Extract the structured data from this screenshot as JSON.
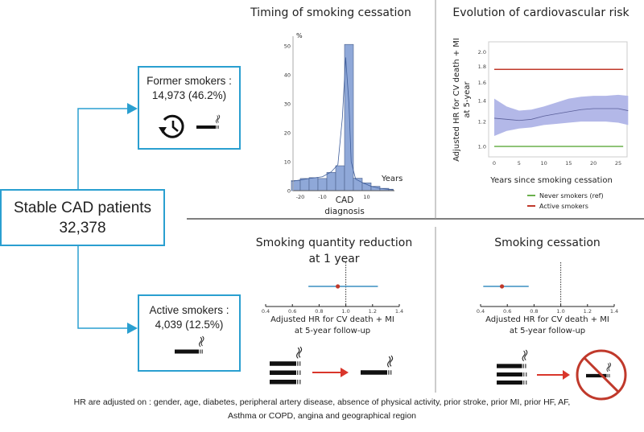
{
  "patients": {
    "title": "Stable CAD patients",
    "count": "32,378"
  },
  "former": {
    "label": "Former smokers :",
    "count": "14,973 (46.2%)",
    "icons": [
      "clock-history-icon",
      "cigarette-icon"
    ]
  },
  "active": {
    "label": "Active smokers :",
    "count": "4,039 (12.5%)",
    "icons": [
      "cigarette-icon"
    ]
  },
  "panels": {
    "timing": {
      "title": "Timing of smoking cessation"
    },
    "evolution": {
      "title": "Evolution of cardiovascular risk"
    },
    "reduction": {
      "title_line1": "Smoking quantity reduction",
      "title_line2": "at 1 year",
      "icons": [
        "three-cigarettes-icon",
        "arrow-right-icon",
        "cigarette-icon"
      ]
    },
    "cessation": {
      "title": "Smoking cessation",
      "icons": [
        "three-cigarettes-icon",
        "arrow-right-icon",
        "no-smoking-icon"
      ]
    }
  },
  "footnote": {
    "line1": "HR are adjusted on : gender, age, diabetes, peripheral artery disease, absence of physical activity, prior stroke, prior MI, prior HF, AF,",
    "line2": "Asthma or COPD, angina and geographical region"
  },
  "colors": {
    "accent_blue": "#2a9fd0",
    "bar_fill": "#8fa8d8",
    "band_fill": "#b3b8e8",
    "active_red": "#c0392b",
    "never_green": "#6ab04c",
    "ci_blue": "#3a8fc0",
    "arrow_red": "#d9362b"
  },
  "chart_data": [
    {
      "type": "bar",
      "title": "Timing of smoking cessation",
      "ylabel": "%",
      "xlabel": "Years",
      "x_marker_label": [
        "CAD",
        "diagnosis"
      ],
      "bin_edges": [
        -24,
        -20,
        -16,
        -12,
        -8,
        -4,
        0,
        4,
        8,
        12,
        16,
        20,
        22
      ],
      "values": [
        3.5,
        4.2,
        4.5,
        4.2,
        6.3,
        8.6,
        50.5,
        4.3,
        2.7,
        1.5,
        0.8,
        0.5
      ],
      "density_curve": [
        [
          -24,
          3.2
        ],
        [
          -16,
          4.2
        ],
        [
          -10,
          4.8
        ],
        [
          -6,
          6.5
        ],
        [
          -3,
          9
        ],
        [
          -1,
          25
        ],
        [
          0.5,
          46
        ],
        [
          2,
          30
        ],
        [
          3,
          10
        ],
        [
          5,
          4
        ],
        [
          8,
          2.8
        ],
        [
          12,
          1.5
        ],
        [
          16,
          0.8
        ],
        [
          22,
          0.3
        ]
      ],
      "xticks": [
        -20,
        -10,
        10
      ],
      "yticks": [
        0,
        10,
        20,
        30,
        40,
        50
      ],
      "ylim": [
        0,
        52
      ],
      "xlim": [
        -24,
        22
      ]
    },
    {
      "type": "line",
      "title": "Evolution of cardiovascular risk",
      "xlabel": "Years since smoking cessation",
      "ylabel": [
        "Adjusted HR for CV death + MI",
        "at 5-year"
      ],
      "yscale": "log",
      "xticks": [
        0,
        5,
        10,
        15,
        20,
        25
      ],
      "yticks": [
        1.0,
        1.2,
        1.4,
        1.6,
        1.8,
        2.0
      ],
      "ytick_labels": [
        "1.0",
        "1.2",
        "1.4",
        "1.6",
        "1.8",
        "2.0"
      ],
      "xlim": [
        -1,
        27
      ],
      "ylim": [
        0.9,
        2.1
      ],
      "legend_position": "bottom",
      "series": [
        {
          "name": "Never smokers (ref)",
          "color": "#6ab04c",
          "x": [
            0,
            26
          ],
          "y": [
            1.0,
            1.0
          ]
        },
        {
          "name": "Active smokers",
          "color": "#c0392b",
          "x": [
            0,
            26
          ],
          "y": [
            1.76,
            1.76
          ]
        }
      ],
      "former_smokers_estimate": {
        "x": [
          0,
          2.5,
          5,
          7.5,
          10,
          12.5,
          15,
          17.5,
          20,
          22.5,
          25,
          27
        ],
        "y": [
          1.23,
          1.22,
          1.21,
          1.22,
          1.25,
          1.27,
          1.29,
          1.31,
          1.32,
          1.32,
          1.32,
          1.3
        ],
        "upper": [
          1.42,
          1.34,
          1.3,
          1.31,
          1.34,
          1.38,
          1.42,
          1.44,
          1.45,
          1.45,
          1.46,
          1.45
        ],
        "lower": [
          1.08,
          1.12,
          1.14,
          1.15,
          1.17,
          1.18,
          1.19,
          1.2,
          1.2,
          1.2,
          1.19,
          1.17
        ]
      }
    },
    {
      "type": "scatter",
      "subtype": "forest",
      "title": "Smoking quantity reduction at 1 year",
      "xlabel": [
        "Adjusted HR for CV death + MI",
        "at 5-year follow-up"
      ],
      "xticks": [
        0.4,
        0.6,
        0.8,
        1.0,
        1.2,
        1.4
      ],
      "xtick_labels": [
        "0.4",
        "0.6",
        "0.8",
        "1.0",
        "1.2",
        "1.4"
      ],
      "xlim": [
        0.4,
        1.4
      ],
      "reference_line": 1.0,
      "estimate": 0.94,
      "ci": [
        0.72,
        1.24
      ]
    },
    {
      "type": "scatter",
      "subtype": "forest",
      "title": "Smoking cessation",
      "xlabel": [
        "Adjusted HR for CV death + MI",
        "at 5-year follow-up"
      ],
      "xticks": [
        0.4,
        0.6,
        0.8,
        1.0,
        1.2,
        1.4
      ],
      "xtick_labels": [
        "0.4",
        "0.6",
        "0.8",
        "1.0",
        "1.2",
        "1.4"
      ],
      "xlim": [
        0.4,
        1.4
      ],
      "reference_line": 1.0,
      "estimate": 0.56,
      "ci": [
        0.42,
        0.76
      ]
    }
  ]
}
